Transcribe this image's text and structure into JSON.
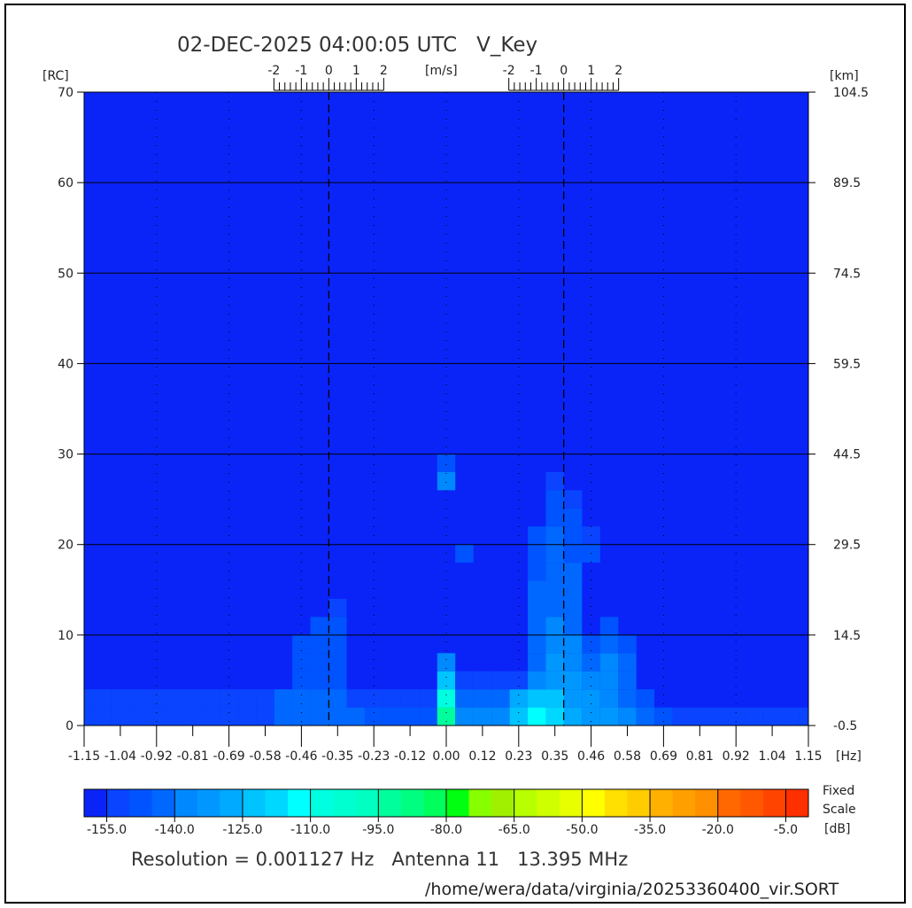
{
  "title": "02-DEC-2025 04:00:05 UTC   V_Key",
  "units": {
    "left": "[RC]",
    "right": "[km]",
    "velocity": "[m/s]",
    "x": "[Hz]",
    "colorbar_top": "Fixed",
    "colorbar_mid": "Scale",
    "colorbar": "[dB]"
  },
  "footer": {
    "info": "Resolution = 0.001127 Hz   Antenna 11   13.395 MHz",
    "path": "/home/wera/data/virginia/20253360400_vir.SORT"
  },
  "chart_data": {
    "type": "heatmap",
    "xlabel": "[Hz]",
    "ylabel": "[RC]",
    "y2label": "[km]",
    "xlim": [
      -1.15,
      1.15
    ],
    "ylim": [
      0,
      70
    ],
    "y2lim": [
      -0.5,
      104.5
    ],
    "x_tick_labels": [
      "-1.15",
      "-1.04",
      "-0.92",
      "-0.81",
      "-0.69",
      "-0.58",
      "-0.46",
      "-0.35",
      "-0.23",
      "-0.12",
      "0.00",
      "0.12",
      "0.23",
      "0.35",
      "0.46",
      "0.58",
      "0.69",
      "0.81",
      "0.92",
      "1.04",
      "1.15"
    ],
    "y_ticks": [
      0,
      10,
      20,
      30,
      40,
      50,
      60,
      70
    ],
    "y_tick_labels": [
      "0",
      "10",
      "20",
      "30",
      "40",
      "50",
      "60",
      "70"
    ],
    "y2_tick_labels": [
      "-0.5",
      "14.5",
      "29.5",
      "44.5",
      "59.5",
      "74.5",
      "89.5",
      "104.5"
    ],
    "grid": true,
    "bragg_lines_hz": [
      -0.373,
      0.373
    ],
    "velocity_scale": {
      "label": "[m/s]",
      "tick_labels": [
        "-2",
        "-1",
        "0",
        "1",
        "2"
      ],
      "range": [
        -2,
        2
      ]
    },
    "background_db": -157,
    "z_x_step_hz": 0.0575,
    "z_y_step_rc": 2,
    "z_db": [
      [
        -152,
        -152,
        -152,
        -152,
        -152,
        -152,
        -152,
        -152,
        -152,
        -152,
        -152,
        -142,
        -142,
        -142,
        -142,
        -142,
        -148,
        -148,
        -148,
        -148,
        -95,
        -140,
        -140,
        -140,
        -125,
        -115,
        -118,
        -130,
        -135,
        -135,
        -138,
        -142,
        -148,
        -153,
        -153,
        -153,
        -153,
        -153,
        -153,
        -153,
        -153
      ],
      [
        -155,
        -155,
        -155,
        -155,
        -155,
        -155,
        -155,
        -155,
        -155,
        -155,
        -155,
        -145,
        -145,
        -145,
        -145,
        -152,
        -152,
        -152,
        -152,
        -152,
        -110,
        -142,
        -142,
        -142,
        -130,
        -125,
        -122,
        -135,
        -135,
        -138,
        -142,
        -148,
        -156,
        -156,
        -156,
        -156,
        -156,
        -156,
        -156,
        -156,
        -156
      ],
      [
        -157,
        -157,
        -157,
        -157,
        -157,
        -157,
        -157,
        -157,
        -157,
        -157,
        -157,
        -157,
        -147,
        -147,
        -147,
        -157,
        -157,
        -157,
        -157,
        -157,
        -125,
        -155,
        -155,
        -155,
        -155,
        -140,
        -132,
        -135,
        -140,
        -138,
        -142,
        -157,
        -157,
        -157,
        -157,
        -157,
        -157,
        -157,
        -157,
        -157,
        -157
      ],
      [
        -157,
        -157,
        -157,
        -157,
        -157,
        -157,
        -157,
        -157,
        -157,
        -157,
        -157,
        -157,
        -148,
        -148,
        -148,
        -157,
        -157,
        -157,
        -157,
        -157,
        -140,
        -157,
        -157,
        -157,
        -157,
        -142,
        -135,
        -138,
        -145,
        -140,
        -145,
        -157,
        -157,
        -157,
        -157,
        -157,
        -157,
        -157,
        -157,
        -157,
        -157
      ],
      [
        -157,
        -157,
        -157,
        -157,
        -157,
        -157,
        -157,
        -157,
        -157,
        -157,
        -157,
        -157,
        -149,
        -149,
        -149,
        -157,
        -157,
        -157,
        -157,
        -157,
        -157,
        -157,
        -157,
        -157,
        -157,
        -143,
        -138,
        -140,
        -148,
        -142,
        -146,
        -157,
        -157,
        -157,
        -157,
        -157,
        -157,
        -157,
        -157,
        -157,
        -157
      ],
      [
        -157,
        -157,
        -157,
        -157,
        -157,
        -157,
        -157,
        -157,
        -157,
        -157,
        -157,
        -157,
        -157,
        -150,
        -150,
        -157,
        -157,
        -157,
        -157,
        -157,
        -157,
        -157,
        -157,
        -157,
        -157,
        -144,
        -140,
        -142,
        -157,
        -146,
        -157,
        -157,
        -157,
        -157,
        -157,
        -157,
        -157,
        -157,
        -157,
        -157,
        -157
      ],
      [
        -157,
        -157,
        -157,
        -157,
        -157,
        -157,
        -157,
        -157,
        -157,
        -157,
        -157,
        -157,
        -157,
        -157,
        -151,
        -157,
        -157,
        -157,
        -157,
        -157,
        -157,
        -157,
        -157,
        -157,
        -157,
        -144,
        -141,
        -143,
        -157,
        -157,
        -157,
        -157,
        -157,
        -157,
        -157,
        -157,
        -157,
        -157,
        -157,
        -157,
        -157
      ],
      [
        -157,
        -157,
        -157,
        -157,
        -157,
        -157,
        -157,
        -157,
        -157,
        -157,
        -157,
        -157,
        -157,
        -157,
        -157,
        -157,
        -157,
        -157,
        -157,
        -157,
        -157,
        -157,
        -157,
        -157,
        -157,
        -145,
        -142,
        -144,
        -157,
        -157,
        -157,
        -157,
        -157,
        -157,
        -157,
        -157,
        -157,
        -157,
        -157,
        -157,
        -157
      ],
      [
        -157,
        -157,
        -157,
        -157,
        -157,
        -157,
        -157,
        -157,
        -157,
        -157,
        -157,
        -157,
        -157,
        -157,
        -157,
        -157,
        -157,
        -157,
        -157,
        -157,
        -157,
        -157,
        -157,
        -157,
        -157,
        -146,
        -143,
        -145,
        -157,
        -157,
        -157,
        -157,
        -157,
        -157,
        -157,
        -157,
        -157,
        -157,
        -157,
        -157,
        -157
      ],
      [
        -157,
        -157,
        -157,
        -157,
        -157,
        -157,
        -157,
        -157,
        -157,
        -157,
        -157,
        -157,
        -157,
        -157,
        -157,
        -157,
        -157,
        -157,
        -157,
        -157,
        -157,
        -148,
        -157,
        -157,
        -157,
        -146,
        -144,
        -146,
        -150,
        -157,
        -157,
        -157,
        -157,
        -157,
        -157,
        -157,
        -157,
        -157,
        -157,
        -157,
        -157
      ],
      [
        -157,
        -157,
        -157,
        -157,
        -157,
        -157,
        -157,
        -157,
        -157,
        -157,
        -157,
        -157,
        -157,
        -157,
        -157,
        -157,
        -157,
        -157,
        -157,
        -157,
        -157,
        -157,
        -157,
        -157,
        -157,
        -148,
        -145,
        -147,
        -151,
        -157,
        -157,
        -157,
        -157,
        -157,
        -157,
        -157,
        -157,
        -157,
        -157,
        -157,
        -157
      ],
      [
        -157,
        -157,
        -157,
        -157,
        -157,
        -157,
        -157,
        -157,
        -157,
        -157,
        -157,
        -157,
        -157,
        -157,
        -157,
        -157,
        -157,
        -157,
        -157,
        -157,
        -157,
        -157,
        -157,
        -157,
        -157,
        -157,
        -147,
        -149,
        -157,
        -157,
        -157,
        -157,
        -157,
        -157,
        -157,
        -157,
        -157,
        -157,
        -157,
        -157,
        -157
      ],
      [
        -157,
        -157,
        -157,
        -157,
        -157,
        -157,
        -157,
        -157,
        -157,
        -157,
        -157,
        -157,
        -157,
        -157,
        -157,
        -157,
        -157,
        -157,
        -157,
        -157,
        -157,
        -157,
        -157,
        -157,
        -157,
        -157,
        -150,
        -151,
        -157,
        -157,
        -157,
        -157,
        -157,
        -157,
        -157,
        -157,
        -157,
        -157,
        -157,
        -157,
        -157
      ],
      [
        -157,
        -157,
        -157,
        -157,
        -157,
        -157,
        -157,
        -157,
        -157,
        -157,
        -157,
        -157,
        -157,
        -157,
        -157,
        -157,
        -157,
        -157,
        -157,
        -157,
        -140,
        -157,
        -157,
        -157,
        -157,
        -157,
        -152,
        -157,
        -157,
        -157,
        -157,
        -157,
        -157,
        -157,
        -157,
        -157,
        -157,
        -157,
        -157,
        -157,
        -157
      ],
      [
        -157,
        -157,
        -157,
        -157,
        -157,
        -157,
        -157,
        -157,
        -157,
        -157,
        -157,
        -157,
        -157,
        -157,
        -157,
        -157,
        -157,
        -157,
        -157,
        -157,
        -148,
        -157,
        -157,
        -157,
        -157,
        -157,
        -157,
        -157,
        -157,
        -157,
        -157,
        -157,
        -157,
        -157,
        -157,
        -157,
        -157,
        -157,
        -157,
        -157,
        -157
      ]
    ],
    "colorbar": {
      "range_db": [
        -160,
        0
      ],
      "step_db": 5,
      "tick_labels": [
        "-155.0",
        "-140.0",
        "-125.0",
        "-110.0",
        "-95.0",
        "-80.0",
        "-65.0",
        "-50.0",
        "-35.0",
        "-20.0",
        "-5.0"
      ],
      "colors": [
        "#0a24f8",
        "#0a44ff",
        "#0054ff",
        "#0068ff",
        "#0088ff",
        "#0098ff",
        "#00aaff",
        "#00c4ff",
        "#00d8ff",
        "#00ffff",
        "#00ffe0",
        "#00ffd0",
        "#00ffc0",
        "#00ff9c",
        "#00ff80",
        "#00ff5c",
        "#00ff10",
        "#88ff00",
        "#a0f000",
        "#b8ff00",
        "#d0ff00",
        "#e8ff00",
        "#ffff00",
        "#ffe000",
        "#ffcc00",
        "#ffb000",
        "#ffa000",
        "#ff9000",
        "#ff6800",
        "#ff5800",
        "#ff4400",
        "#ff3000"
      ]
    }
  }
}
